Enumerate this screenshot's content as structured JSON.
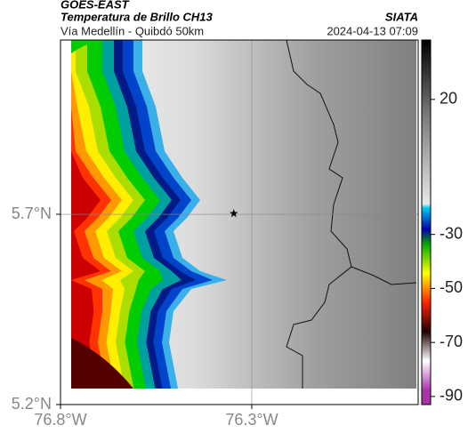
{
  "header": {
    "source": "GOES-EAST",
    "product": "Temperatura de Brillo CH13",
    "region": "Vía Medellín - Quibdó 50km",
    "agency": "SIATA",
    "datetime": "2024-04-13 07:09"
  },
  "map": {
    "xlim": [
      -76.8,
      -75.865
    ],
    "ylim": [
      5.2,
      6.158
    ],
    "xticks": [
      {
        "value": -76.8,
        "label": "76.8°W"
      },
      {
        "value": -76.3,
        "label": "76.3°W"
      }
    ],
    "yticks": [
      {
        "value": 5.7,
        "label": "5.7°N"
      },
      {
        "value": 5.2,
        "label": "5.2°N"
      }
    ],
    "grid": true,
    "marker": {
      "lon": -76.347,
      "lat": 5.702
    }
  },
  "colorbar": {
    "range": [
      -93,
      42
    ],
    "ticks": [
      20,
      -30,
      -50,
      -70,
      -90
    ]
  }
}
